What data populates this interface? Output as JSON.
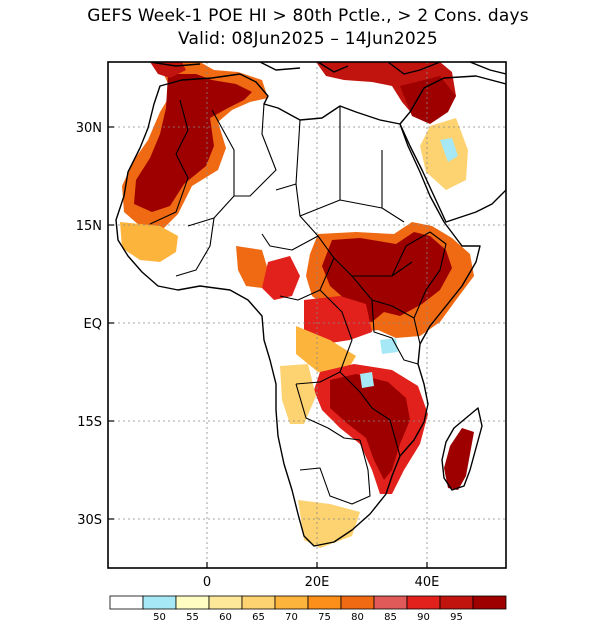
{
  "title": {
    "line1": "GEFS Week-1 POE HI > 80th Pctle., > 2 Cons. days",
    "line2": "Valid: 08Jun2025 – 14Jun2025"
  },
  "axes": {
    "lat_labels": [
      "30N",
      "15N",
      "EQ",
      "15S",
      "30S"
    ],
    "lon_labels": [
      "0",
      "20E",
      "40E"
    ]
  },
  "colorbar": {
    "colors": [
      "#ffffff",
      "#a6e8f5",
      "#fffdc2",
      "#fde89a",
      "#fdd270",
      "#fcb43c",
      "#fb8f1a",
      "#f06a14",
      "#e05a5a",
      "#e2201c",
      "#c2140f",
      "#9e0000"
    ],
    "labels": [
      "50",
      "55",
      "60",
      "65",
      "70",
      "75",
      "80",
      "85",
      "90",
      "95"
    ]
  },
  "map_colors": {
    "c95": "#9e0000",
    "c90": "#c2140f",
    "c85": "#e2201c",
    "c80": "#f06a14",
    "c70": "#fcb43c",
    "c60": "#fdd270",
    "c50": "#a6e8f5"
  }
}
